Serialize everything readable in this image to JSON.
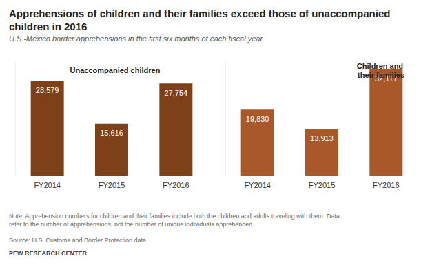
{
  "title": "Apprehensions of children and their families exceed those of unaccompanied children in 2016",
  "subtitle": "U.S.-Mexico border apprehensions in the first six months of each fiscal year",
  "note": "Note: Apprehension numbers for children and their families include both the children and adults traveling with them. Data refer to the number of apprehensions, not the number of unique individuals apprehended.",
  "source": "Source: U.S. Customs and Border Protection data.",
  "credit": "PEW RESEARCH CENTER",
  "chart_data": [
    {
      "type": "bar",
      "title": "Unaccompanied children",
      "categories": [
        "FY2014",
        "FY2015",
        "FY2016"
      ],
      "values": [
        28579,
        15616,
        27754
      ],
      "value_labels": [
        "28,579",
        "15,616",
        "27,754"
      ],
      "color": "#7d4019",
      "data_labels": true,
      "tick_labels": "x",
      "grid": false,
      "ylim": [
        0,
        34000
      ],
      "yticks": [
        0,
        34000
      ]
    },
    {
      "type": "bar",
      "title": "Children and their families",
      "categories": [
        "FY2014",
        "FY2015",
        "FY2016"
      ],
      "values": [
        19830,
        13913,
        32117
      ],
      "value_labels": [
        "19,830",
        "13,913",
        "32,117"
      ],
      "color": "#a9582a",
      "data_labels": true,
      "tick_labels": "x",
      "grid": false,
      "ylim": [
        0,
        34000
      ],
      "yticks": [
        0,
        34000
      ]
    }
  ]
}
